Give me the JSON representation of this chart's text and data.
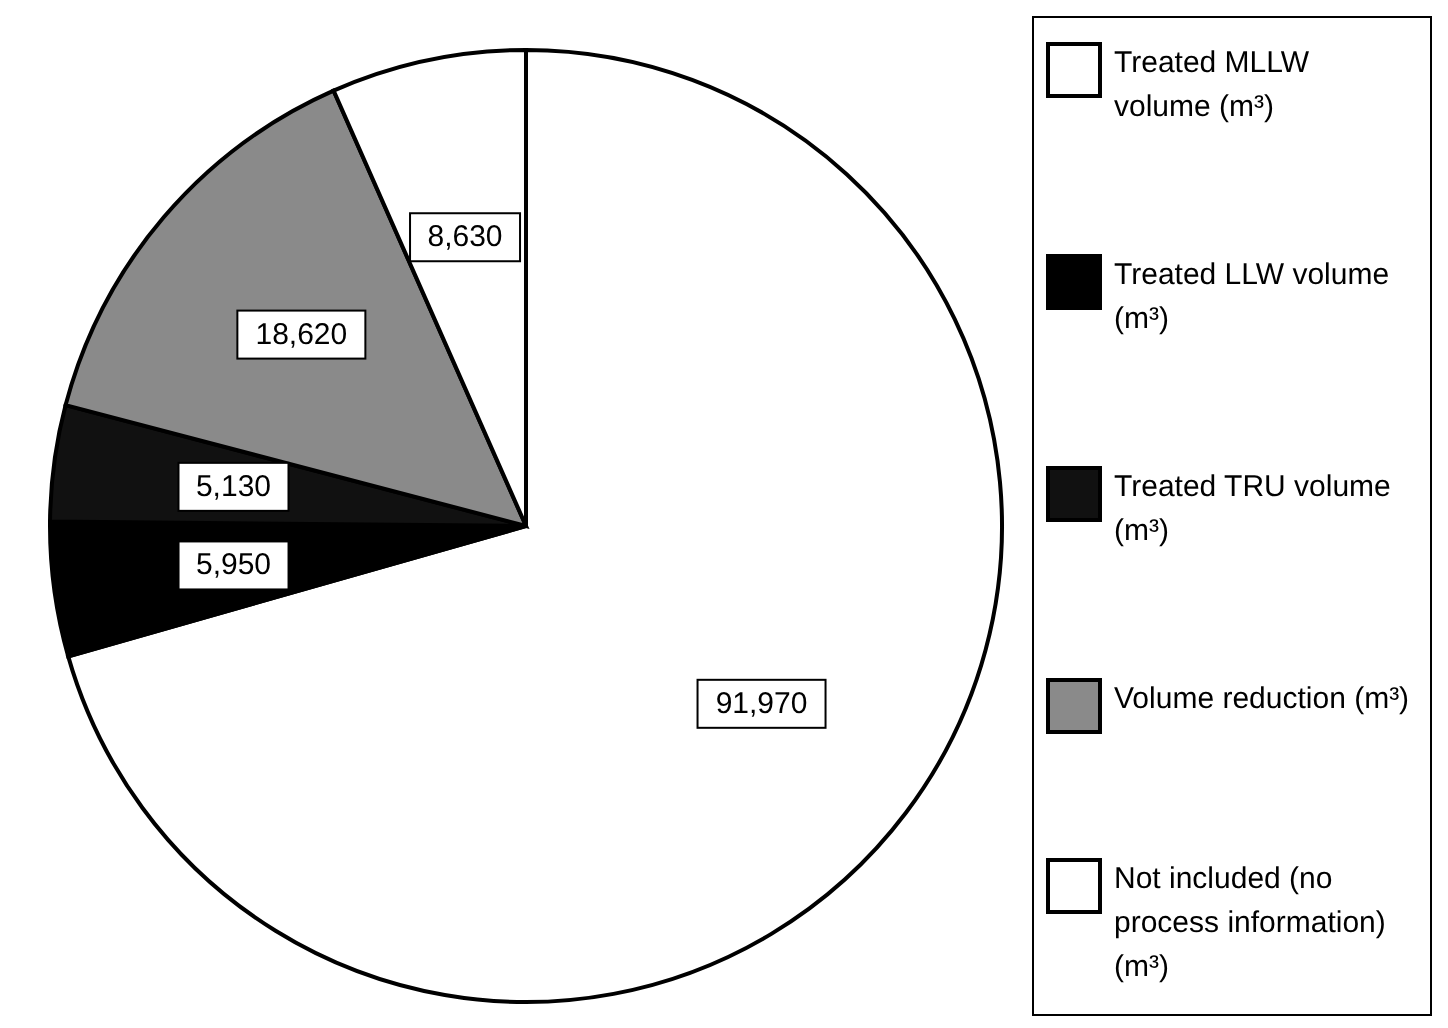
{
  "chart_data": {
    "type": "pie",
    "categories": [
      "Treated MLLW volume (m³)",
      "Treated LLW volume (m³)",
      "Treated TRU volume (m³)",
      "Volume reduction (m³)",
      "Not included (no process information) (m³)"
    ],
    "values": [
      91970,
      5950,
      5130,
      18620,
      8630
    ],
    "value_labels": [
      "91,970",
      "5,950",
      "5,130",
      "18,620",
      "8,630"
    ],
    "colors": [
      "#ffffff",
      "#000000",
      "#111111",
      "#8a8a8a",
      "#ffffff"
    ],
    "legend": "right"
  }
}
